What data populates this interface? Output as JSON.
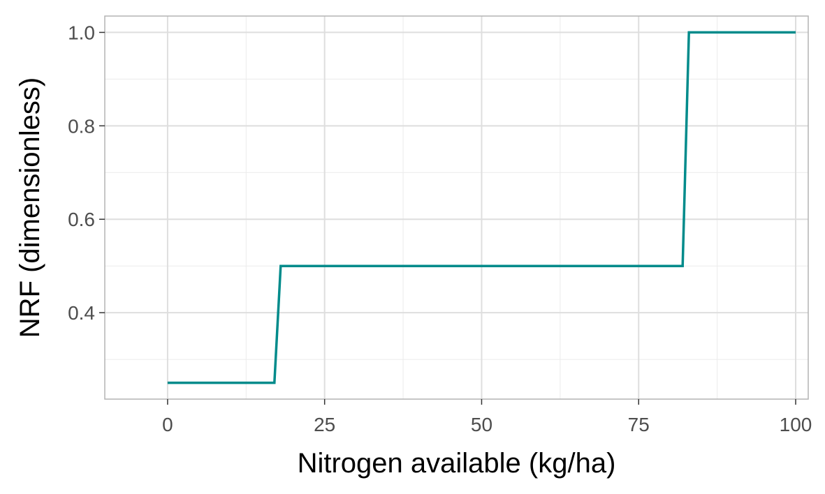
{
  "chart_data": {
    "type": "line",
    "title": "",
    "xlabel": "Nitrogen available (kg/ha)",
    "ylabel": "NRF (dimensionless)",
    "xlim": [
      -10,
      102
    ],
    "ylim": [
      0.215,
      1.035
    ],
    "x_ticks": [
      0,
      25,
      50,
      75,
      100
    ],
    "x_tick_labels": [
      "0",
      "25",
      "50",
      "75",
      "100"
    ],
    "x_minor_ticks": [
      12.5,
      37.5,
      62.5,
      87.5
    ],
    "y_ticks": [
      0.4,
      0.6,
      0.8,
      1.0
    ],
    "y_tick_labels": [
      "0.4",
      "0.6",
      "0.8",
      "1.0"
    ],
    "y_minor_ticks": [
      0.3,
      0.5,
      0.7,
      0.9
    ],
    "grid": true,
    "legend": "none",
    "series": [
      {
        "color": "#008b8b",
        "x": [
          0,
          17,
          18,
          82,
          83,
          100
        ],
        "y": [
          0.25,
          0.25,
          0.5,
          0.5,
          1.0,
          1.0
        ]
      }
    ]
  }
}
